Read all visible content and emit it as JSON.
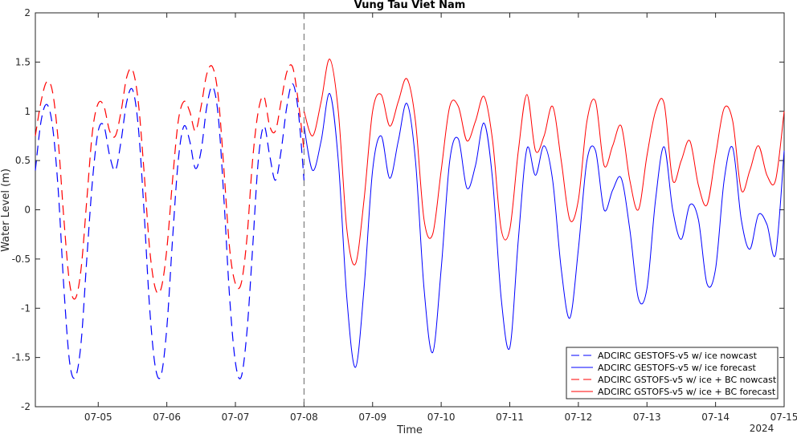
{
  "chart_data": {
    "type": "line",
    "title": "Vung Tau Viet Nam",
    "xlabel": "Time",
    "ylabel": "Water Level (m)",
    "year_label": "2024",
    "x_ticks": [
      "07-05",
      "07-06",
      "07-07",
      "07-08",
      "07-09",
      "07-10",
      "07-11",
      "07-12",
      "07-13",
      "07-14",
      "07-15"
    ],
    "x_range": [
      "07-04 02:00",
      "07-15 00:00"
    ],
    "ylim": [
      -2,
      2
    ],
    "y_ticks": [
      -2,
      -1.5,
      -1,
      -0.5,
      0,
      0.5,
      1,
      1.5,
      2
    ],
    "vertical_marker": "07-08",
    "legend_position": "bottom-right",
    "series": [
      {
        "name": "ADCIRC GESTOFS-v5 w/ ice nowcast",
        "color": "#0000ff",
        "style": "dashed",
        "x": [
          "07-04 02:00",
          "07-04 04:00",
          "07-04 06:00",
          "07-04 08:00",
          "07-04 10:00",
          "07-04 12:00",
          "07-04 14:00",
          "07-04 16:00",
          "07-04 18:00",
          "07-04 20:00",
          "07-04 22:00",
          "07-05 00:00",
          "07-05 02:00",
          "07-05 04:00",
          "07-05 06:00",
          "07-05 08:00",
          "07-05 10:00",
          "07-05 12:00",
          "07-05 14:00",
          "07-05 16:00",
          "07-05 18:00",
          "07-05 20:00",
          "07-05 22:00",
          "07-06 00:00",
          "07-06 02:00",
          "07-06 04:00",
          "07-06 06:00",
          "07-06 08:00",
          "07-06 10:00",
          "07-06 12:00",
          "07-06 14:00",
          "07-06 16:00",
          "07-06 18:00",
          "07-06 20:00",
          "07-06 22:00",
          "07-07 00:00",
          "07-07 02:00",
          "07-07 04:00",
          "07-07 06:00",
          "07-07 08:00",
          "07-07 10:00",
          "07-07 12:00",
          "07-07 14:00",
          "07-07 16:00",
          "07-07 18:00",
          "07-07 20:00",
          "07-07 22:00",
          "07-08 00:00"
        ],
        "values": [
          0.4,
          0.9,
          1.07,
          0.85,
          0.2,
          -0.8,
          -1.55,
          -1.7,
          -1.35,
          -0.5,
          0.3,
          0.8,
          0.85,
          0.55,
          0.4,
          0.7,
          1.1,
          1.22,
          0.85,
          0.0,
          -1.0,
          -1.6,
          -1.68,
          -1.2,
          -0.3,
          0.5,
          0.85,
          0.7,
          0.42,
          0.6,
          1.05,
          1.25,
          0.95,
          0.1,
          -0.9,
          -1.55,
          -1.7,
          -1.25,
          -0.4,
          0.5,
          0.85,
          0.55,
          0.3,
          0.6,
          1.05,
          1.28,
          1.0,
          0.3
        ]
      },
      {
        "name": "ADCIRC GESTOFS-v5 w/ ice forecast",
        "color": "#0000ff",
        "style": "solid",
        "x": [
          "07-08 00:00",
          "07-08 03:00",
          "07-08 06:00",
          "07-08 09:00",
          "07-08 12:00",
          "07-08 15:00",
          "07-08 18:00",
          "07-08 21:00",
          "07-09 00:00",
          "07-09 03:00",
          "07-09 06:00",
          "07-09 09:00",
          "07-09 12:00",
          "07-09 15:00",
          "07-09 18:00",
          "07-09 21:00",
          "07-10 00:00",
          "07-10 03:00",
          "07-10 06:00",
          "07-10 09:00",
          "07-10 12:00",
          "07-10 15:00",
          "07-10 18:00",
          "07-10 21:00",
          "07-11 00:00",
          "07-11 03:00",
          "07-11 06:00",
          "07-11 09:00",
          "07-11 12:00",
          "07-11 15:00",
          "07-11 18:00",
          "07-11 21:00",
          "07-12 00:00",
          "07-12 03:00",
          "07-12 06:00",
          "07-12 09:00",
          "07-12 12:00",
          "07-12 15:00",
          "07-12 18:00",
          "07-12 21:00",
          "07-13 00:00",
          "07-13 03:00",
          "07-13 06:00",
          "07-13 09:00",
          "07-13 12:00",
          "07-13 15:00",
          "07-13 18:00",
          "07-13 21:00",
          "07-14 00:00",
          "07-14 03:00",
          "07-14 06:00",
          "07-14 09:00",
          "07-14 12:00",
          "07-14 15:00",
          "07-14 18:00",
          "07-14 21:00",
          "07-15 00:00"
        ],
        "values": [
          0.85,
          0.4,
          0.7,
          1.18,
          0.5,
          -0.9,
          -1.6,
          -0.8,
          0.4,
          0.75,
          0.32,
          0.7,
          1.08,
          0.5,
          -0.8,
          -1.45,
          -0.6,
          0.5,
          0.72,
          0.22,
          0.45,
          0.88,
          0.3,
          -0.9,
          -1.4,
          -0.3,
          0.62,
          0.35,
          0.65,
          0.3,
          -0.6,
          -1.1,
          -0.4,
          0.5,
          0.6,
          0.0,
          0.2,
          0.32,
          -0.2,
          -0.9,
          -0.8,
          0.1,
          0.64,
          0.0,
          -0.3,
          0.05,
          -0.1,
          -0.75,
          -0.6,
          0.3,
          0.63,
          -0.1,
          -0.4,
          -0.05,
          -0.15,
          -0.45,
          0.6
        ]
      },
      {
        "name": "ADCIRC GSTOFS-v5 w/ ice + BC nowcast",
        "color": "#ff0000",
        "style": "dashed",
        "x": [
          "07-04 02:00",
          "07-04 04:00",
          "07-04 06:00",
          "07-04 08:00",
          "07-04 10:00",
          "07-04 12:00",
          "07-04 14:00",
          "07-04 16:00",
          "07-04 18:00",
          "07-04 20:00",
          "07-04 22:00",
          "07-05 00:00",
          "07-05 02:00",
          "07-05 04:00",
          "07-05 06:00",
          "07-05 08:00",
          "07-05 10:00",
          "07-05 12:00",
          "07-05 14:00",
          "07-05 16:00",
          "07-05 18:00",
          "07-05 20:00",
          "07-05 22:00",
          "07-06 00:00",
          "07-06 02:00",
          "07-06 04:00",
          "07-06 06:00",
          "07-06 08:00",
          "07-06 10:00",
          "07-06 12:00",
          "07-06 14:00",
          "07-06 16:00",
          "07-06 18:00",
          "07-06 20:00",
          "07-06 22:00",
          "07-07 00:00",
          "07-07 02:00",
          "07-07 04:00",
          "07-07 06:00",
          "07-07 08:00",
          "07-07 10:00",
          "07-07 12:00",
          "07-07 14:00",
          "07-07 16:00",
          "07-07 18:00",
          "07-07 20:00",
          "07-07 22:00",
          "07-08 00:00"
        ],
        "values": [
          0.75,
          1.1,
          1.3,
          1.2,
          0.7,
          -0.1,
          -0.75,
          -0.9,
          -0.6,
          0.1,
          0.8,
          1.08,
          1.05,
          0.8,
          0.75,
          1.0,
          1.35,
          1.42,
          1.1,
          0.4,
          -0.4,
          -0.8,
          -0.8,
          -0.4,
          0.3,
          0.9,
          1.1,
          1.0,
          0.8,
          1.05,
          1.38,
          1.45,
          1.15,
          0.4,
          -0.4,
          -0.75,
          -0.75,
          -0.3,
          0.5,
          1.0,
          1.15,
          0.85,
          0.8,
          1.1,
          1.4,
          1.45,
          1.1,
          0.6
        ]
      },
      {
        "name": "ADCIRC GSTOFS-v5 w/ ice + BC forecast",
        "color": "#ff0000",
        "style": "solid",
        "x": [
          "07-08 00:00",
          "07-08 03:00",
          "07-08 06:00",
          "07-08 09:00",
          "07-08 12:00",
          "07-08 15:00",
          "07-08 18:00",
          "07-08 21:00",
          "07-09 00:00",
          "07-09 03:00",
          "07-09 06:00",
          "07-09 09:00",
          "07-09 12:00",
          "07-09 15:00",
          "07-09 18:00",
          "07-09 21:00",
          "07-10 00:00",
          "07-10 03:00",
          "07-10 06:00",
          "07-10 09:00",
          "07-10 12:00",
          "07-10 15:00",
          "07-10 18:00",
          "07-10 21:00",
          "07-11 00:00",
          "07-11 03:00",
          "07-11 06:00",
          "07-11 09:00",
          "07-11 12:00",
          "07-11 15:00",
          "07-11 18:00",
          "07-11 21:00",
          "07-12 00:00",
          "07-12 03:00",
          "07-12 06:00",
          "07-12 09:00",
          "07-12 12:00",
          "07-12 15:00",
          "07-12 18:00",
          "07-12 21:00",
          "07-13 00:00",
          "07-13 03:00",
          "07-13 06:00",
          "07-13 09:00",
          "07-13 12:00",
          "07-13 15:00",
          "07-13 18:00",
          "07-13 21:00",
          "07-14 00:00",
          "07-14 03:00",
          "07-14 06:00",
          "07-14 09:00",
          "07-14 12:00",
          "07-14 15:00",
          "07-14 18:00",
          "07-14 21:00",
          "07-15 00:00"
        ],
        "values": [
          1.0,
          0.75,
          1.1,
          1.53,
          1.0,
          -0.2,
          -0.55,
          0.1,
          1.0,
          1.17,
          0.85,
          1.1,
          1.33,
          0.9,
          -0.1,
          -0.25,
          0.4,
          1.05,
          1.05,
          0.7,
          0.9,
          1.15,
          0.7,
          -0.2,
          -0.2,
          0.6,
          1.17,
          0.6,
          0.75,
          1.05,
          0.5,
          -0.1,
          0.1,
          0.9,
          1.1,
          0.45,
          0.65,
          0.85,
          0.3,
          0.0,
          0.55,
          1.0,
          1.08,
          0.3,
          0.5,
          0.7,
          0.25,
          0.05,
          0.55,
          1.03,
          0.9,
          0.2,
          0.4,
          0.65,
          0.35,
          0.3,
          1.0
        ]
      }
    ]
  }
}
